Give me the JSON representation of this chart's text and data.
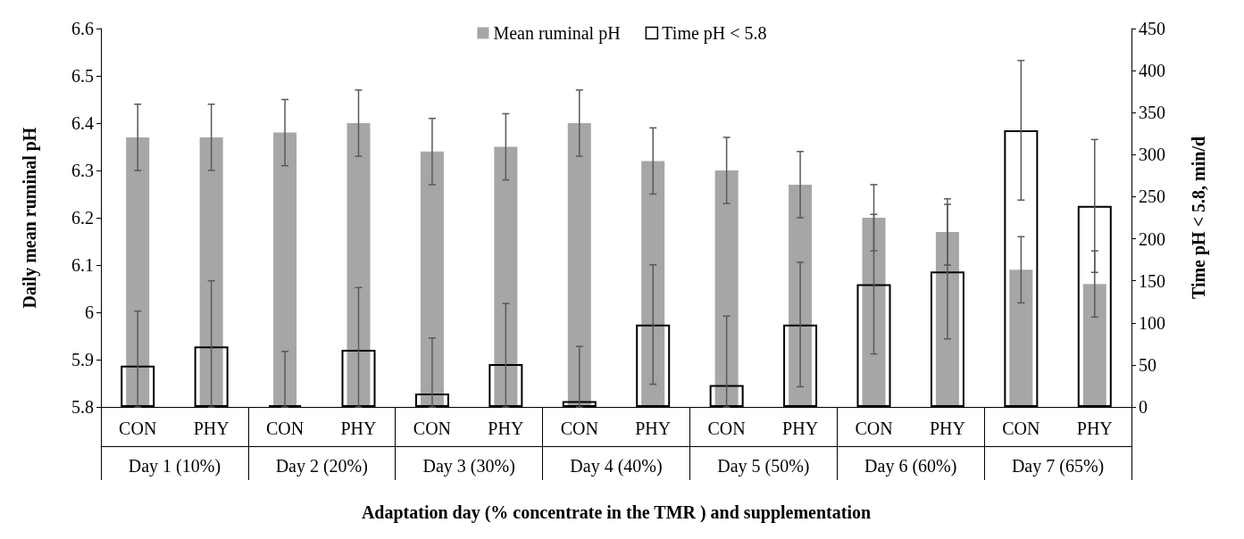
{
  "chart_data": {
    "type": "bar",
    "xlabel": "Adaptation day (% concentrate in the TMR ) and supplementation",
    "ylabel": "Daily mean ruminal pH",
    "y2label": "Time pH < 5.8, min/d",
    "categories": [
      "CON",
      "PHY",
      "CON",
      "PHY",
      "CON",
      "PHY",
      "CON",
      "PHY",
      "CON",
      "PHY",
      "CON",
      "PHY",
      "CON",
      "PHY"
    ],
    "annotations": [
      "Day 1 (10%)",
      "Day 2 (20%)",
      "Day 3 (30%)",
      "Day 4 (40%)",
      "Day 5 (50%)",
      "Day 6 (60%)",
      "Day 7 (65%)"
    ],
    "series": [
      {
        "name": "Mean ruminal pH",
        "color": "#a6a6a6",
        "values": [
          6.37,
          6.37,
          6.38,
          6.4,
          6.34,
          6.35,
          6.4,
          6.32,
          6.3,
          6.27,
          6.2,
          6.17,
          6.09,
          6.06
        ],
        "errors": [
          0.07,
          0.07,
          0.07,
          0.07,
          0.07,
          0.07,
          0.07,
          0.07,
          0.07,
          0.07,
          0.07,
          0.07,
          0.07,
          0.07
        ]
      },
      {
        "name": "Time pH < 5.8",
        "color": "#000000",
        "axis": "y2",
        "values": [
          49,
          72,
          2,
          68,
          16,
          51,
          7,
          98,
          26,
          98,
          146,
          161,
          329,
          239
        ],
        "errors": [
          [
            0,
            114
          ],
          [
            0,
            150
          ],
          [
            0,
            66
          ],
          [
            0,
            142
          ],
          [
            0,
            82
          ],
          [
            0,
            123
          ],
          [
            0,
            72
          ],
          71,
          [
            0,
            108
          ],
          74,
          83,
          80,
          83,
          79
        ]
      }
    ],
    "ylim": [
      5.8,
      6.6
    ],
    "yticks": [
      5.8,
      5.9,
      6,
      6.1,
      6.2,
      6.3,
      6.4,
      6.5,
      6.6
    ],
    "y2lim": [
      0,
      450
    ],
    "y2ticks": [
      0,
      50,
      100,
      150,
      200,
      250,
      300,
      350,
      400,
      450
    ],
    "grid": false,
    "legend": "top"
  }
}
